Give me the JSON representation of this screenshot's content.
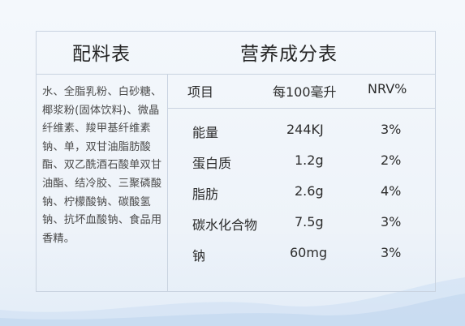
{
  "ingredients": {
    "title": "配料表",
    "text": "水、全脂乳粉、白砂糖、椰浆粉(固体饮料)、微晶纤维素、羧甲基纤维素钠、单，双甘油脂肪酸酯、双乙酰酒石酸单双甘油酯、结冷胶、三聚磷酸钠、柠檬酸钠、碳酸氢钠、抗坏血酸钠、食品用香精。"
  },
  "nutrition": {
    "title": "营养成分表",
    "headers": {
      "item": "项目",
      "per": "每100毫升",
      "nrv": "NRV%"
    },
    "rows": [
      {
        "name": "能量",
        "value": "244KJ",
        "nrv": "3%"
      },
      {
        "name": "蛋白质",
        "value": "1.2g",
        "nrv": "2%"
      },
      {
        "name": "脂肪",
        "value": "2.6g",
        "nrv": "4%"
      },
      {
        "name": "碳水化合物",
        "value": "7.5g",
        "nrv": "3%"
      },
      {
        "name": "钠",
        "value": "60mg",
        "nrv": "3%"
      }
    ]
  }
}
